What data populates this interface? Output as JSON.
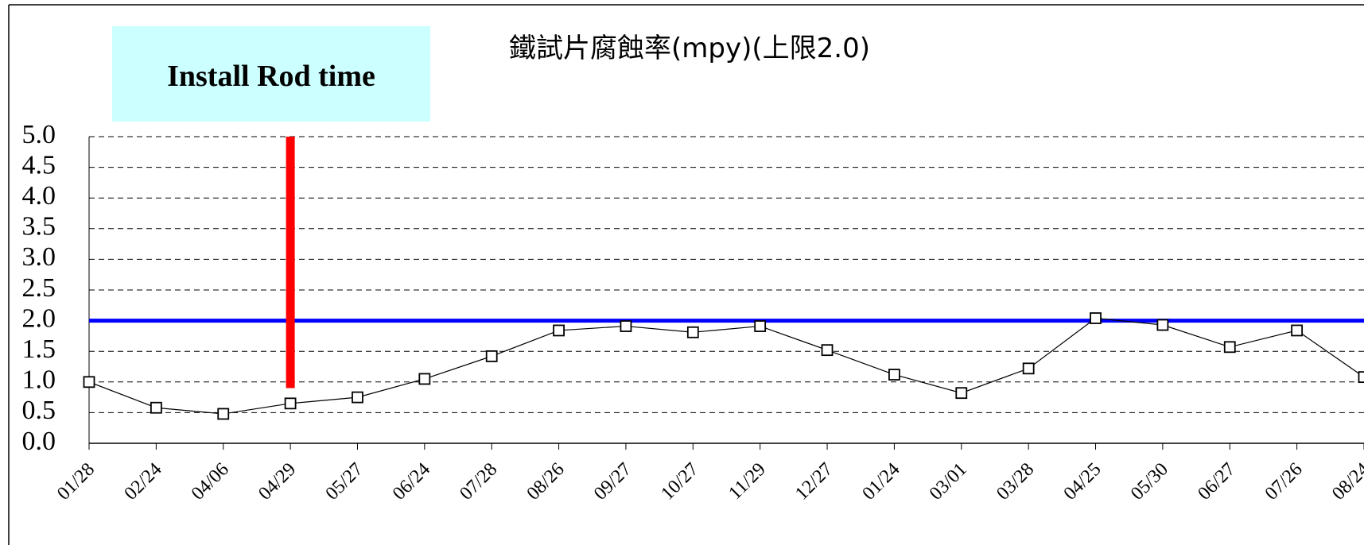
{
  "chart_data": {
    "type": "line",
    "title": "鐵試片腐蝕率(mpy)(上限2.0)",
    "categories": [
      "01/28",
      "02/24",
      "04/06",
      "04/29",
      "05/27",
      "06/24",
      "07/28",
      "08/26",
      "09/27",
      "10/27",
      "11/29",
      "12/27",
      "01/24",
      "03/01",
      "03/28",
      "04/25",
      "05/30",
      "06/27",
      "07/26",
      "08/24"
    ],
    "series": [
      {
        "name": "鐵試片腐蝕率",
        "color": "#000000",
        "values": [
          1.0,
          0.58,
          0.48,
          0.65,
          0.75,
          1.05,
          1.42,
          1.84,
          1.91,
          1.81,
          1.91,
          1.52,
          1.12,
          0.82,
          1.22,
          2.04,
          1.93,
          1.57,
          1.84,
          1.08
        ]
      }
    ],
    "ylim": [
      0,
      5
    ],
    "yticks": [
      {
        "value": 0,
        "label": "0.0"
      },
      0.5,
      {
        "value": 1,
        "label": "1.0"
      },
      1.5,
      {
        "value": 2,
        "label": "2.0"
      },
      2.5,
      {
        "value": 3,
        "label": "3.0"
      },
      3.5,
      {
        "value": 4,
        "label": "4.0"
      },
      4.5,
      {
        "value": 5,
        "label": "5.0"
      }
    ],
    "grid": true,
    "reference_line": {
      "value": 2.0,
      "color": "#0000ff"
    },
    "annotation": {
      "text": "Install Rod time",
      "category": "04/29",
      "ymin": 0.9,
      "ymax": 5.0,
      "color": "#ff0000",
      "box_color": "#ccffff"
    }
  }
}
